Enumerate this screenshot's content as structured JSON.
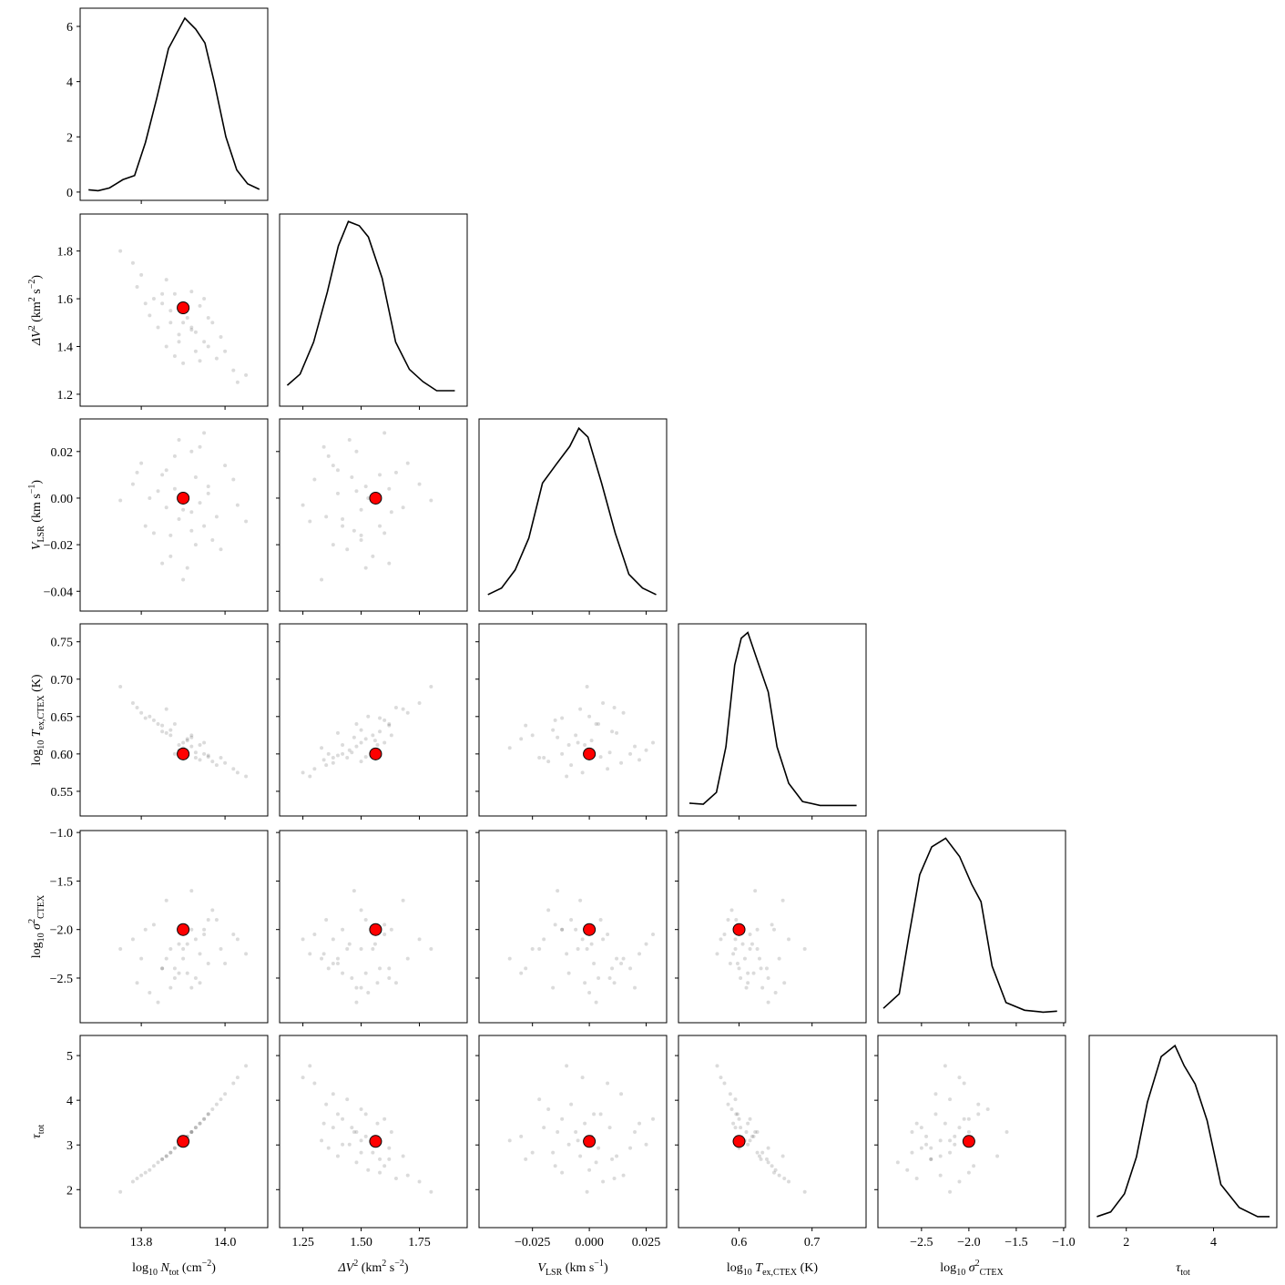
{
  "chart_data": {
    "type": "corner",
    "point_color": "#000000",
    "truth_color": "#ff0000",
    "line_color": "#000000",
    "params": [
      {
        "label": [
          [
            "log",
            "base"
          ],
          [
            "10",
            "sub"
          ],
          [
            " N",
            "italic"
          ],
          [
            "tot",
            "sub"
          ],
          [
            " (cm",
            "base"
          ],
          [
            "−2",
            "sup"
          ],
          [
            ")",
            "base"
          ]
        ],
        "lim": [
          13.654,
          14.102
        ],
        "xticks": [
          13.8,
          {
            "value": 14.0,
            "label": "14.0"
          }
        ],
        "yticks": [],
        "truth": 13.9,
        "samples": [
          13.9,
          13.85,
          13.95,
          13.88,
          13.93,
          13.8,
          13.98,
          13.92,
          13.87,
          13.96,
          13.83,
          14.02,
          13.91,
          13.89,
          13.94,
          13.86,
          13.97,
          13.82,
          14.05,
          13.78,
          13.92,
          13.88,
          13.99,
          13.84,
          13.95,
          13.9,
          13.86,
          13.93,
          14.0,
          13.81,
          13.75,
          13.91,
          13.87,
          13.96,
          13.89,
          13.94,
          13.85,
          14.03,
          13.79,
          13.92
        ],
        "density": {
          "x": [
            13.674,
            13.697,
            13.724,
            13.756,
            13.784,
            13.81,
            13.837,
            13.865,
            13.904,
            13.93,
            13.952,
            13.974,
            14.002,
            14.028,
            14.054,
            14.082
          ],
          "y": [
            0.08,
            0.05,
            0.15,
            0.45,
            0.6,
            1.8,
            3.4,
            5.2,
            6.3,
            5.9,
            5.4,
            4.0,
            2.0,
            0.8,
            0.3,
            0.1
          ],
          "ylim": [
            -0.3,
            6.66
          ],
          "yticks": [
            0,
            2,
            4,
            6
          ]
        }
      },
      {
        "label": [
          [
            "ΔV",
            "italic"
          ],
          [
            "2",
            "sup"
          ],
          [
            " (km",
            "base"
          ],
          [
            "2",
            "sup"
          ],
          [
            " s",
            "base"
          ],
          [
            "−2",
            "sup"
          ],
          [
            ")",
            "base"
          ]
        ],
        "lim": [
          1.15,
          1.955
        ],
        "xticks": [
          1.25,
          {
            "value": 1.5,
            "label": "1.50"
          },
          1.75
        ],
        "yticks": [
          1.2,
          1.4,
          1.6,
          1.8
        ],
        "truth": 1.562,
        "samples": [
          1.5,
          1.58,
          1.42,
          1.62,
          1.38,
          1.7,
          1.35,
          1.48,
          1.55,
          1.4,
          1.6,
          1.3,
          1.52,
          1.45,
          1.57,
          1.4,
          1.5,
          1.53,
          1.28,
          1.75,
          1.63,
          1.36,
          1.44,
          1.48,
          1.6,
          1.33,
          1.68,
          1.46,
          1.38,
          1.58,
          1.8,
          1.56,
          1.5,
          1.52,
          1.42,
          1.34,
          1.62,
          1.25,
          1.65,
          1.47
        ],
        "density": {
          "x": [
            1.183,
            1.238,
            1.296,
            1.355,
            1.402,
            1.445,
            1.492,
            1.531,
            1.59,
            1.648,
            1.707,
            1.765,
            1.824,
            1.902
          ],
          "y": [
            0.39,
            0.6,
            1.2,
            2.14,
            3.0,
            3.46,
            3.38,
            3.17,
            2.4,
            1.2,
            0.69,
            0.46,
            0.29,
            0.29
          ],
          "ylim": [
            0,
            3.6
          ]
        }
      },
      {
        "label": [
          [
            "V",
            "italic"
          ],
          [
            "LSR",
            "sub"
          ],
          [
            " (km s",
            "base"
          ],
          [
            "−1",
            "sup"
          ],
          [
            ")",
            "base"
          ]
        ],
        "lim": [
          -0.0485,
          0.034
        ],
        "xticks": [
          {
            "value": -0.025,
            "label": "−0.025"
          },
          {
            "value": 0,
            "label": "0.000"
          },
          0.025
        ],
        "yticks": [
          {
            "value": -0.04,
            "label": "−0.04"
          },
          {
            "value": -0.02,
            "label": "−0.02"
          },
          {
            "value": 0,
            "label": "0.00"
          },
          0.02
        ],
        "truth": 0,
        "samples": [
          -0.005,
          0.01,
          -0.012,
          0.004,
          -0.02,
          0.015,
          -0.008,
          0.02,
          -0.025,
          0.002,
          -0.015,
          0.008,
          -0.03,
          0.025,
          -0.002,
          0.012,
          -0.018,
          0.0,
          -0.01,
          0.006,
          -0.006,
          0.018,
          -0.022,
          0.003,
          0.028,
          -0.035,
          -0.004,
          0.009,
          0.014,
          -0.012,
          -0.001,
          0.001,
          -0.016,
          0.005,
          -0.009,
          0.022,
          -0.028,
          -0.003,
          0.011,
          -0.014
        ],
        "density": {
          "x": [
            -0.0446,
            -0.0386,
            -0.0326,
            -0.0266,
            -0.0206,
            -0.0146,
            -0.0086,
            -0.0046,
            -0.0006,
            0.0054,
            0.0114,
            0.0174,
            0.0234,
            0.0294
          ],
          "y": [
            3.0,
            4.2,
            7.5,
            13.3,
            23.3,
            26.7,
            30,
            33.3,
            31.7,
            23.3,
            14.2,
            6.7,
            4.2,
            3.0
          ],
          "ylim": [
            0,
            35
          ]
        }
      },
      {
        "label": [
          [
            "log",
            "base"
          ],
          [
            "10",
            "sub"
          ],
          [
            " T",
            "italic"
          ],
          [
            "ex,CTEX",
            "sub"
          ],
          [
            " (K)",
            "base"
          ]
        ],
        "lim": [
          0.517,
          0.774
        ],
        "xticks": [
          0.6,
          0.7
        ],
        "yticks": [
          0.55,
          {
            "value": 0.6,
            "label": "0.60"
          },
          0.65,
          {
            "value": 0.7,
            "label": "0.70"
          },
          0.75
        ],
        "truth": 0.6,
        "samples": [
          0.615,
          0.63,
          0.6,
          0.64,
          0.595,
          0.655,
          0.585,
          0.61,
          0.625,
          0.598,
          0.645,
          0.58,
          0.62,
          0.605,
          0.612,
          0.628,
          0.59,
          0.65,
          0.57,
          0.668,
          0.625,
          0.6,
          0.595,
          0.64,
          0.615,
          0.608,
          0.66,
          0.602,
          0.588,
          0.648,
          0.69,
          0.618,
          0.632,
          0.596,
          0.612,
          0.592,
          0.638,
          0.575,
          0.662,
          0.622
        ],
        "density": {
          "x": [
            0.532,
            0.551,
            0.569,
            0.582,
            0.594,
            0.603,
            0.612,
            0.625,
            0.64,
            0.652,
            0.668,
            0.687,
            0.711,
            0.761
          ],
          "y": [
            1.33,
            1.23,
            2.46,
            7.2,
            15.7,
            18.5,
            19.1,
            16.2,
            12.9,
            7.2,
            3.4,
            1.5,
            1.1,
            1.1
          ],
          "ylim": [
            0,
            20
          ]
        }
      },
      {
        "label": [
          [
            "log",
            "base"
          ],
          [
            "10",
            "sub"
          ],
          [
            " σ",
            "italic"
          ],
          [
            "2",
            "sup"
          ],
          [
            "CTEX",
            "sub"
          ]
        ],
        "lim": [
          -2.96,
          -0.98
        ],
        "xticks": [
          {
            "value": -2.5,
            "label": "−2.5"
          },
          {
            "value": -2.0,
            "label": "−2.0"
          },
          {
            "value": -1.5,
            "label": "−1.5"
          },
          {
            "value": -1.0,
            "label": "−1.0"
          }
        ],
        "yticks": [
          {
            "value": -2.5,
            "label": "−2.5"
          },
          {
            "value": -2.0,
            "label": "−2.0"
          },
          {
            "value": -1.5,
            "label": "−1.5"
          },
          {
            "value": -1.0,
            "label": "−1.0"
          }
        ],
        "truth": -2.0,
        "samples": [
          -2.2,
          -2.4,
          -2.0,
          -2.5,
          -2.1,
          -2.3,
          -1.9,
          -2.6,
          -2.2,
          -2.35,
          -1.95,
          -2.05,
          -2.45,
          -2.15,
          -2.55,
          -2.3,
          -1.8,
          -2.65,
          -2.25,
          -2.1,
          -2.0,
          -2.4,
          -2.2,
          -2.75,
          -2.05,
          -2.3,
          -1.7,
          -2.5,
          -2.35,
          -2.0,
          -2.2,
          -2.15,
          -2.6,
          -1.9,
          -2.45,
          -2.25,
          -2.4,
          -2.1,
          -2.55,
          -1.6
        ],
        "density": {
          "x": [
            -2.902,
            -2.735,
            -2.637,
            -2.519,
            -2.392,
            -2.245,
            -2.098,
            -1.97,
            -1.872,
            -1.755,
            -1.608,
            -1.412,
            -1.216,
            -1.069
          ],
          "y": [
            0.15,
            0.3,
            0.88,
            1.54,
            1.83,
            1.92,
            1.73,
            1.44,
            1.26,
            0.59,
            0.21,
            0.13,
            0.11,
            0.12
          ],
          "ylim": [
            0,
            2
          ]
        }
      },
      {
        "label": [
          [
            "τ",
            "italic"
          ],
          [
            "tot",
            "sub"
          ]
        ],
        "lim": [
          1.15,
          5.45
        ],
        "xticks": [
          2,
          4
        ],
        "yticks": [
          2,
          3,
          4,
          5
        ],
        "truth": 3.08,
        "samples": [
          3.1,
          2.68,
          3.58,
          2.93,
          3.39,
          2.32,
          3.91,
          3.29,
          2.83,
          3.69,
          2.53,
          4.38,
          3.19,
          3.01,
          3.48,
          2.75,
          3.8,
          2.44,
          4.77,
          2.18,
          3.29,
          2.93,
          4.02,
          2.61,
          3.58,
          3.1,
          2.75,
          3.39,
          4.14,
          2.38,
          1.95,
          3.19,
          2.83,
          3.69,
          3.01,
          3.48,
          2.68,
          4.51,
          2.25,
          3.29
        ],
        "density": {
          "x": [
            1.326,
            1.642,
            1.958,
            2.232,
            2.484,
            2.8,
            3.116,
            3.326,
            3.579,
            3.853,
            4.168,
            4.59,
            5.011,
            5.284
          ],
          "y": [
            0.04,
            0.057,
            0.123,
            0.257,
            0.457,
            0.623,
            0.663,
            0.59,
            0.523,
            0.39,
            0.157,
            0.073,
            0.04,
            0.04
          ],
          "ylim": [
            0,
            0.7
          ]
        }
      }
    ]
  }
}
